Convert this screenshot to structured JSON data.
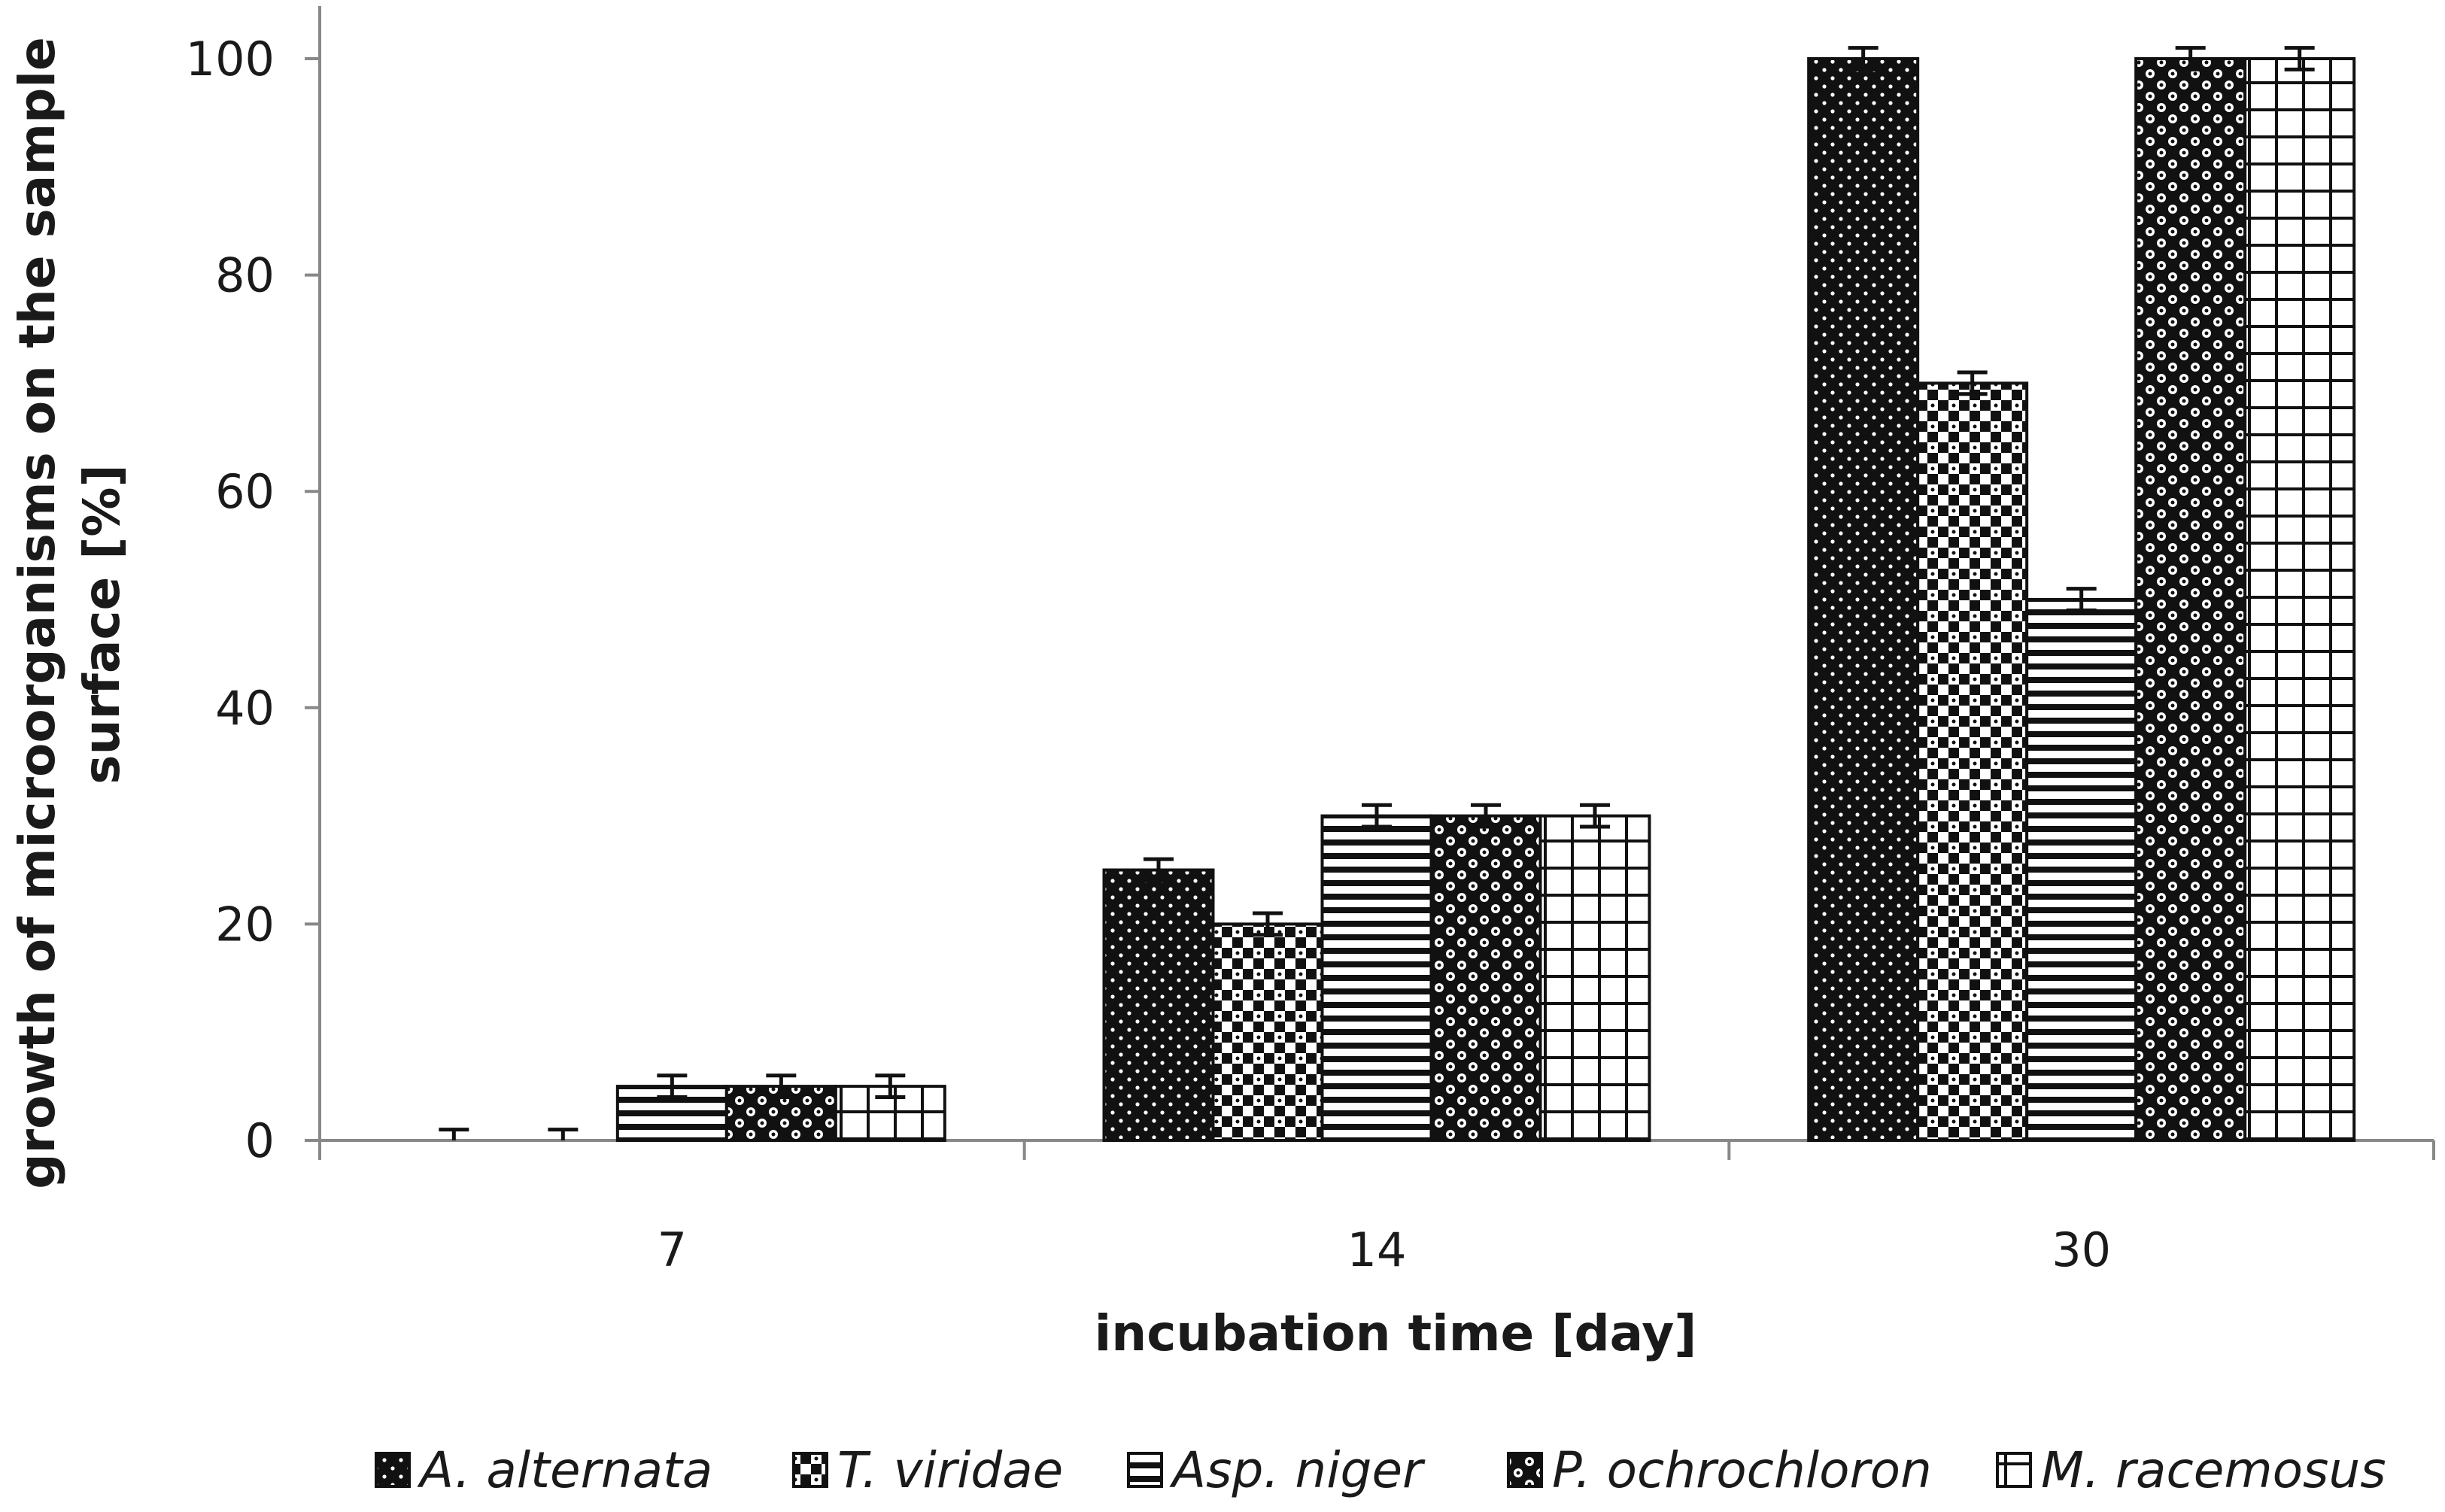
{
  "chart_data": {
    "type": "bar",
    "categories": [
      "7",
      "14",
      "30"
    ],
    "series": [
      {
        "name": "A. alternata",
        "values": [
          0,
          25,
          100
        ],
        "errors": [
          1,
          1,
          1
        ],
        "pattern": "dots"
      },
      {
        "name": "T. viridae",
        "values": [
          0,
          20,
          70
        ],
        "errors": [
          1,
          1,
          1
        ],
        "pattern": "checker"
      },
      {
        "name": "Asp. niger",
        "values": [
          5,
          30,
          50
        ],
        "errors": [
          1,
          1,
          1
        ],
        "pattern": "hlines"
      },
      {
        "name": "P. ochrochloron",
        "values": [
          5,
          30,
          100
        ],
        "errors": [
          1,
          1,
          1
        ],
        "pattern": "circles"
      },
      {
        "name": "M. racemosus",
        "values": [
          5,
          30,
          100
        ],
        "errors": [
          1,
          1,
          1
        ],
        "pattern": "grid"
      }
    ],
    "xlabel": "incubation time [day]",
    "ylabel_line1": "growth of microorganisms on the sample",
    "ylabel_line2": "surface [%]",
    "ylim": [
      0,
      100
    ],
    "yticks": [
      0,
      20,
      40,
      60,
      80,
      100
    ],
    "grid": false,
    "legend_position": "bottom",
    "colors": {
      "ink": "#111111",
      "paper": "#ffffff",
      "axis": "#888888"
    }
  }
}
